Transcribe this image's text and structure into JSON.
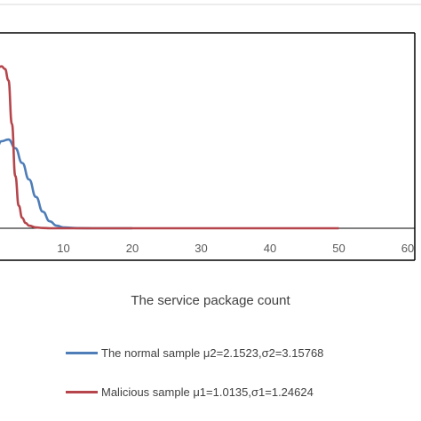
{
  "chart_data": {
    "type": "line",
    "title": "",
    "xlabel": "The service package count",
    "ylabel": "",
    "xlim": [
      0,
      60
    ],
    "x_ticks": [
      "10",
      "20",
      "30",
      "40",
      "50",
      "60"
    ],
    "grid": false,
    "legend_placement": "bottom",
    "series": [
      {
        "name": "The normal sample  μ2=2.1523,σ2=3.15768",
        "color": "#4E7DB8",
        "x": [
          0,
          1,
          2,
          3,
          4,
          5,
          6,
          7,
          8,
          9,
          10,
          12,
          15,
          20
        ],
        "y": [
          0.086,
          0.1,
          0.102,
          0.092,
          0.075,
          0.056,
          0.036,
          0.019,
          0.008,
          0.003,
          0.001,
          0.0002,
          0.0,
          0.0
        ]
      },
      {
        "name": "Malicious sample  μ1=1.0135,σ1=1.24624",
        "color": "#B5454B",
        "x": [
          0,
          0.5,
          1,
          1.5,
          2,
          2.5,
          3,
          3.5,
          4,
          4.5,
          5,
          6,
          7,
          8,
          10,
          20,
          30,
          40,
          50
        ],
        "y": [
          0.18,
          0.185,
          0.186,
          0.183,
          0.17,
          0.12,
          0.06,
          0.026,
          0.012,
          0.006,
          0.003,
          0.001,
          0.0003,
          0.0,
          0.0,
          0.0,
          0.0,
          0.0,
          0.0
        ]
      }
    ]
  }
}
